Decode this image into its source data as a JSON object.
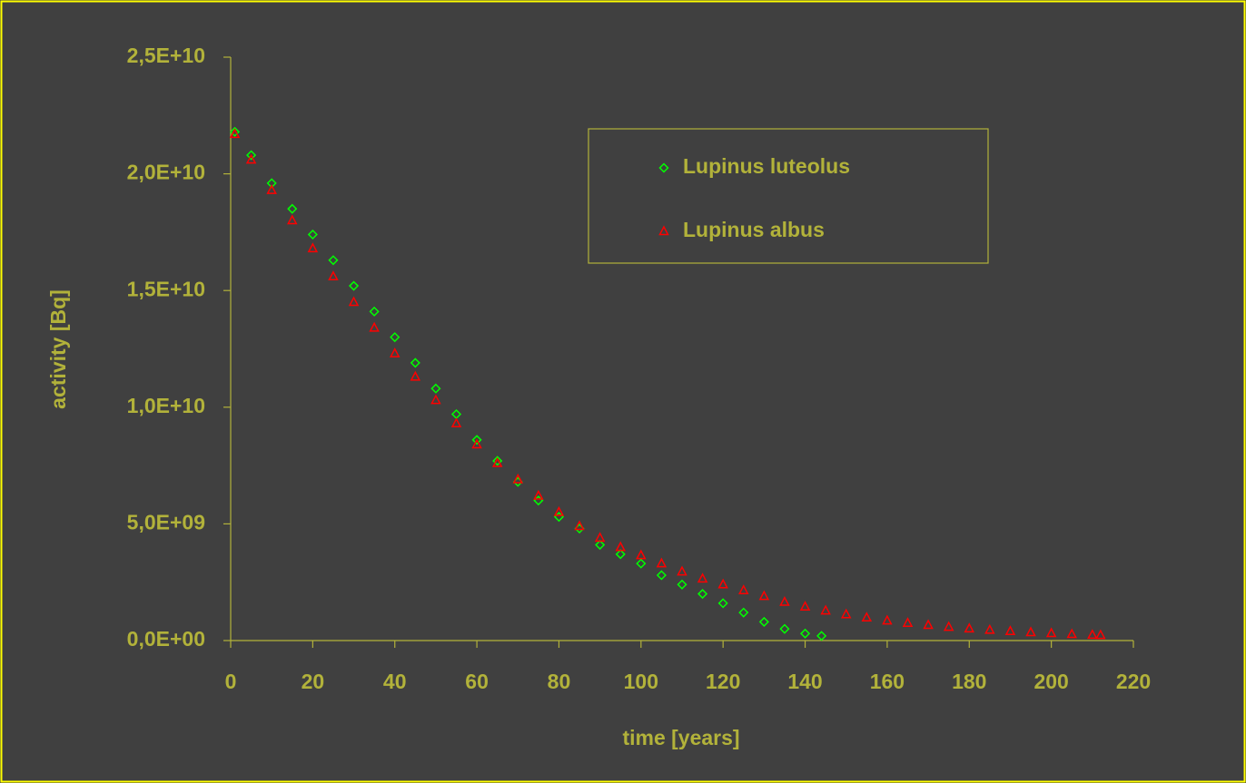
{
  "chart_data": {
    "type": "scatter",
    "xlabel": "time [years]",
    "ylabel": "activity [Bq]",
    "xlim": [
      0,
      220
    ],
    "xticks": [
      0,
      20,
      40,
      60,
      80,
      100,
      120,
      140,
      160,
      180,
      200,
      220
    ],
    "ylim": [
      0,
      25000000000.0
    ],
    "yticks": [
      {
        "value": 0,
        "label": "0,0E+00"
      },
      {
        "value": 5000000000.0,
        "label": "5,0E+09"
      },
      {
        "value": 10000000000.0,
        "label": "1,0E+10"
      },
      {
        "value": 15000000000.0,
        "label": "1,5E+10"
      },
      {
        "value": 20000000000.0,
        "label": "2,0E+10"
      },
      {
        "value": 25000000000.0,
        "label": "2,5E+10"
      }
    ],
    "series": [
      {
        "name": "Lupinus luteolus",
        "color": "#00ff00",
        "marker": "diamond",
        "x": [
          1,
          5,
          10,
          15,
          20,
          25,
          30,
          35,
          40,
          45,
          50,
          55,
          60,
          65,
          70,
          75,
          80,
          85,
          90,
          95,
          100,
          105,
          110,
          115,
          120,
          125,
          130,
          135,
          140,
          144
        ],
        "values": [
          21800000000.0,
          20800000000.0,
          19600000000.0,
          18500000000.0,
          17400000000.0,
          16300000000.0,
          15200000000.0,
          14100000000.0,
          13000000000.0,
          11900000000.0,
          10800000000.0,
          9700000000.0,
          8600000000.0,
          7700000000.0,
          6800000000.0,
          6000000000.0,
          5300000000.0,
          4800000000.0,
          4100000000.0,
          3700000000.0,
          3300000000.0,
          2800000000.0,
          2400000000.0,
          2000000000.0,
          1600000000.0,
          1200000000.0,
          800000000.0,
          500000000.0,
          300000000.0,
          200000000.0
        ]
      },
      {
        "name": "Lupinus albus",
        "color": "#ff0000",
        "marker": "triangle",
        "x": [
          1,
          5,
          10,
          15,
          20,
          25,
          30,
          35,
          40,
          45,
          50,
          55,
          60,
          65,
          70,
          75,
          80,
          85,
          90,
          95,
          100,
          105,
          110,
          115,
          120,
          125,
          130,
          135,
          140,
          145,
          150,
          155,
          160,
          165,
          170,
          175,
          180,
          185,
          190,
          195,
          200,
          205,
          210,
          212
        ],
        "values": [
          21700000000.0,
          20600000000.0,
          19300000000.0,
          18000000000.0,
          16800000000.0,
          15600000000.0,
          14500000000.0,
          13400000000.0,
          12300000000.0,
          11300000000.0,
          10300000000.0,
          9300000000.0,
          8400000000.0,
          7600000000.0,
          6900000000.0,
          6200000000.0,
          5500000000.0,
          4900000000.0,
          4400000000.0,
          4000000000.0,
          3650000000.0,
          3300000000.0,
          2950000000.0,
          2650000000.0,
          2400000000.0,
          2150000000.0,
          1900000000.0,
          1650000000.0,
          1450000000.0,
          1280000000.0,
          1120000000.0,
          980000000.0,
          850000000.0,
          750000000.0,
          660000000.0,
          580000000.0,
          510000000.0,
          450000000.0,
          400000000.0,
          350000000.0,
          310000000.0,
          270000000.0,
          240000000.0,
          230000000.0
        ]
      }
    ],
    "legend": "upper right",
    "grid": false
  }
}
